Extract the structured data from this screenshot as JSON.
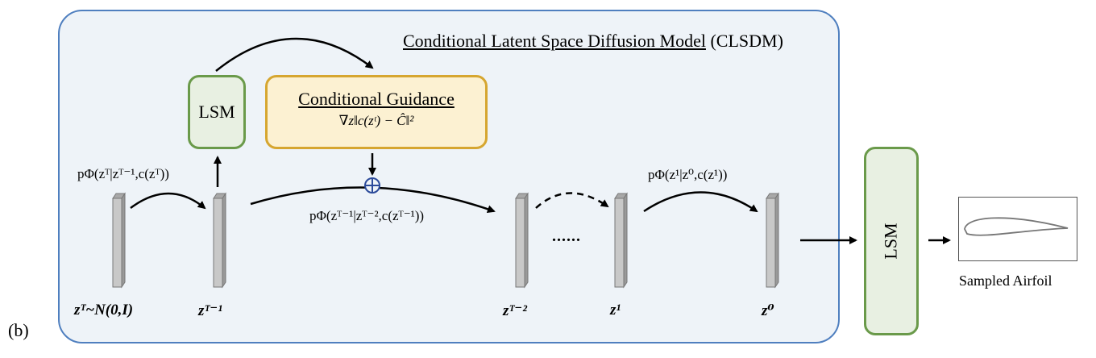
{
  "panel_tag": "(b)",
  "title": {
    "underlined": "Conditional Latent Space Diffusion Model",
    "suffix": " (CLSDM)"
  },
  "lsm_label": "LSM",
  "guidance": {
    "title": "Conditional Guidance",
    "equation": "∇z‖c(zᵗ) − Ĉ‖²"
  },
  "transitions": {
    "t1": "pΦ(zᵀ|zᵀ⁻¹,c(zᵀ))",
    "t2": "pΦ(zᵀ⁻¹|zᵀ⁻²,c(zᵀ⁻¹))",
    "t3": "pΦ(z¹|z⁰,c(z¹))"
  },
  "latents": {
    "z_T": "zᵀ~N(0,I)",
    "z_T1": "zᵀ⁻¹",
    "z_T2": "zᵀ⁻²",
    "z_1": "z¹",
    "z_0": "z⁰"
  },
  "ellipsis": "......",
  "output_label": "Sampled Airfoil",
  "colors": {
    "panel_border": "#4f7fbf",
    "panel_fill": "#eef3f8",
    "lsm_border": "#6a9a4a",
    "lsm_fill": "#e8f0e2",
    "guide_border": "#d6a630",
    "guide_fill": "#fcf1d2",
    "latent_bar": "#c8c8c8"
  }
}
